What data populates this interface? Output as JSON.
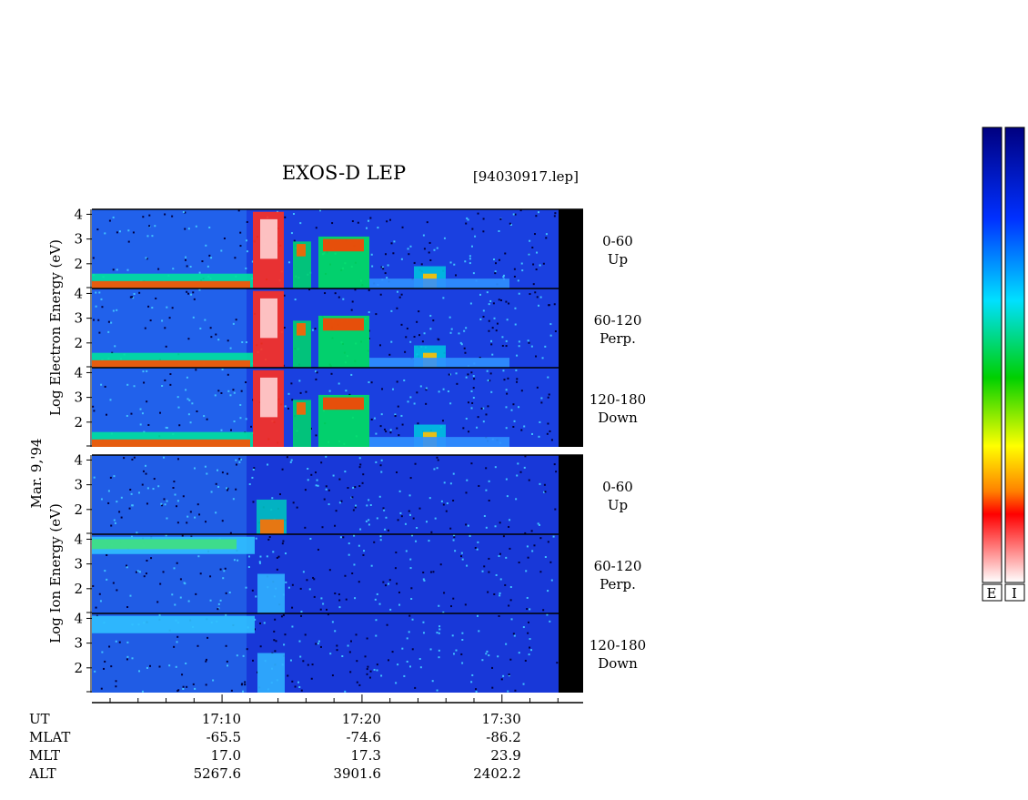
{
  "title": "EXOS-D LEP",
  "file": "[94030917.lep]",
  "date": "Mar. 9,'94",
  "groups": [
    "Log Electron Energy (eV)",
    "Log Ion Energy (eV)"
  ],
  "panels": [
    [
      "0-60",
      "Up"
    ],
    [
      "60-120",
      "Perp."
    ],
    [
      "120-180",
      "Down"
    ],
    [
      "0-60",
      "Up"
    ],
    [
      "60-120",
      "Perp."
    ],
    [
      "120-180",
      "Down"
    ]
  ],
  "ylim": [
    1,
    4.2
  ],
  "yticks": [
    2,
    3,
    4
  ],
  "xlim": [
    0.7,
    35.8
  ],
  "xticks": [
    {
      "value": 10,
      "label": "17:10"
    },
    {
      "value": 20,
      "label": "17:20"
    },
    {
      "value": 30,
      "label": "17:30"
    }
  ],
  "row_names": [
    "UT",
    "MLAT",
    "MLT",
    "ALT"
  ],
  "rows": [
    [
      "-65.5",
      "-74.6",
      "-86.2"
    ],
    [
      "17.0",
      "17.3",
      "23.9"
    ],
    [
      "5267.6",
      "3901.6",
      "2402.2"
    ]
  ],
  "colorbar": [
    "E",
    "I"
  ]
}
